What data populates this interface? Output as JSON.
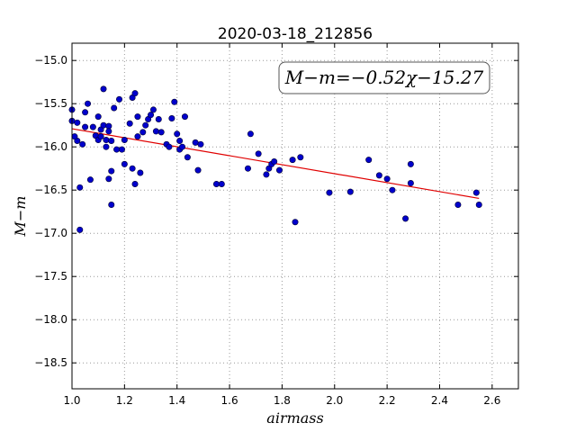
{
  "chart_data": {
    "type": "scatter",
    "title": "2020-03-18_212856",
    "xlabel": "airmass",
    "ylabel": "M−m",
    "xlim": [
      1.0,
      2.7
    ],
    "ylim": [
      -18.8,
      -14.8
    ],
    "y_inverted": true,
    "grid": true,
    "x_ticks": [
      1.0,
      1.2,
      1.4,
      1.6,
      1.8,
      2.0,
      2.2,
      2.4,
      2.6
    ],
    "x_tick_labels": [
      "1.0",
      "1.2",
      "1.4",
      "1.6",
      "1.8",
      "2.0",
      "2.2",
      "2.4",
      "2.6"
    ],
    "y_ticks": [
      -15.0,
      -15.5,
      -16.0,
      -16.5,
      -17.0,
      -17.5,
      -18.0,
      -18.5
    ],
    "y_tick_labels": [
      "−15.0",
      "−15.5",
      "−16.0",
      "−16.5",
      "−17.0",
      "−17.5",
      "−18.0",
      "−18.5"
    ],
    "annotation": "M−m=−0.52χ−15.27",
    "colors": {
      "points": "#0000cc",
      "fit": "#e00000",
      "grid": "#999999"
    },
    "fit": {
      "slope": -0.52,
      "intercept": -15.27,
      "x_range": [
        1.0,
        2.55
      ]
    },
    "points": [
      [
        1.0,
        -15.57
      ],
      [
        1.0,
        -15.7
      ],
      [
        1.02,
        -15.72
      ],
      [
        1.02,
        -15.93
      ],
      [
        1.01,
        -15.88
      ],
      [
        1.03,
        -16.47
      ],
      [
        1.03,
        -16.96
      ],
      [
        1.04,
        -15.97
      ],
      [
        1.05,
        -15.6
      ],
      [
        1.05,
        -15.77
      ],
      [
        1.06,
        -15.5
      ],
      [
        1.07,
        -16.38
      ],
      [
        1.08,
        -15.77
      ],
      [
        1.09,
        -15.87
      ],
      [
        1.1,
        -15.65
      ],
      [
        1.1,
        -15.92
      ],
      [
        1.11,
        -15.88
      ],
      [
        1.11,
        -15.8
      ],
      [
        1.12,
        -15.33
      ],
      [
        1.12,
        -15.75
      ],
      [
        1.13,
        -15.92
      ],
      [
        1.13,
        -16.0
      ],
      [
        1.14,
        -16.37
      ],
      [
        1.14,
        -15.76
      ],
      [
        1.14,
        -15.82
      ],
      [
        1.15,
        -15.93
      ],
      [
        1.15,
        -16.28
      ],
      [
        1.15,
        -16.67
      ],
      [
        1.16,
        -15.55
      ],
      [
        1.17,
        -16.03
      ],
      [
        1.18,
        -15.45
      ],
      [
        1.19,
        -16.03
      ],
      [
        1.2,
        -15.92
      ],
      [
        1.2,
        -16.2
      ],
      [
        1.22,
        -15.73
      ],
      [
        1.23,
        -16.25
      ],
      [
        1.23,
        -15.43
      ],
      [
        1.24,
        -15.38
      ],
      [
        1.24,
        -16.43
      ],
      [
        1.25,
        -15.65
      ],
      [
        1.25,
        -15.88
      ],
      [
        1.26,
        -16.3
      ],
      [
        1.27,
        -15.83
      ],
      [
        1.28,
        -15.75
      ],
      [
        1.29,
        -15.68
      ],
      [
        1.3,
        -15.63
      ],
      [
        1.31,
        -15.57
      ],
      [
        1.32,
        -15.82
      ],
      [
        1.33,
        -15.68
      ],
      [
        1.34,
        -15.83
      ],
      [
        1.36,
        -15.97
      ],
      [
        1.37,
        -16.0
      ],
      [
        1.38,
        -15.67
      ],
      [
        1.39,
        -15.48
      ],
      [
        1.4,
        -15.85
      ],
      [
        1.41,
        -15.93
      ],
      [
        1.41,
        -16.03
      ],
      [
        1.42,
        -16.0
      ],
      [
        1.43,
        -15.65
      ],
      [
        1.44,
        -16.12
      ],
      [
        1.47,
        -15.95
      ],
      [
        1.48,
        -16.27
      ],
      [
        1.49,
        -15.97
      ],
      [
        1.55,
        -16.43
      ],
      [
        1.57,
        -16.43
      ],
      [
        1.67,
        -16.25
      ],
      [
        1.68,
        -15.85
      ],
      [
        1.71,
        -16.08
      ],
      [
        1.74,
        -16.32
      ],
      [
        1.75,
        -16.25
      ],
      [
        1.76,
        -16.2
      ],
      [
        1.77,
        -16.17
      ],
      [
        1.79,
        -16.27
      ],
      [
        1.84,
        -16.15
      ],
      [
        1.85,
        -16.87
      ],
      [
        1.87,
        -16.12
      ],
      [
        1.98,
        -16.53
      ],
      [
        2.06,
        -16.52
      ],
      [
        2.13,
        -16.15
      ],
      [
        2.17,
        -16.33
      ],
      [
        2.2,
        -16.37
      ],
      [
        2.22,
        -16.5
      ],
      [
        2.27,
        -16.83
      ],
      [
        2.29,
        -16.42
      ],
      [
        2.29,
        -16.2
      ],
      [
        2.47,
        -16.67
      ],
      [
        2.54,
        -16.53
      ],
      [
        2.55,
        -16.67
      ]
    ]
  }
}
